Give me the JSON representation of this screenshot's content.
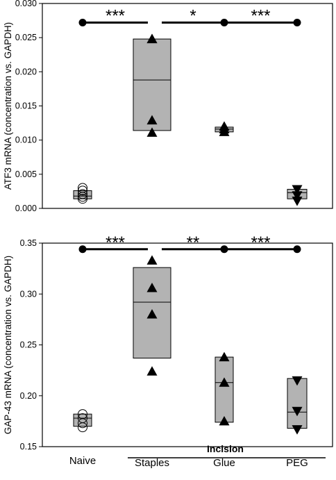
{
  "chart_data": [
    {
      "type": "box",
      "ylabel": "ATF3 mRNA (concentration vs. GAPDH)",
      "ylim": [
        0,
        0.03
      ],
      "yticks": [
        0,
        0.005,
        0.01,
        0.015,
        0.02,
        0.025,
        0.03
      ],
      "ytick_labels": [
        "0.000",
        "0.005",
        "0.010",
        "0.015",
        "0.020",
        "0.025",
        "0.030"
      ],
      "categories": [
        "Naive",
        "Staples",
        "Glue",
        "PEG"
      ],
      "boxes": [
        {
          "category": "Naive",
          "q1": 0.0014,
          "median": 0.0018,
          "q3": 0.0026
        },
        {
          "category": "Staples",
          "q1": 0.0114,
          "median": 0.0188,
          "q3": 0.0248
        },
        {
          "category": "Glue",
          "q1": 0.0112,
          "median": 0.0116,
          "q3": 0.0119
        },
        {
          "category": "PEG",
          "q1": 0.0014,
          "median": 0.0023,
          "q3": 0.0028
        }
      ],
      "points": [
        {
          "category": "Naive",
          "marker": "circle-open",
          "values": [
            0.0014,
            0.0017,
            0.0021,
            0.0026,
            0.003
          ]
        },
        {
          "category": "Staples",
          "marker": "triangle-up",
          "values": [
            0.0111,
            0.0129,
            0.0248,
            0.0248
          ]
        },
        {
          "category": "Glue",
          "marker": "triangle-up",
          "values": [
            0.0112,
            0.0116,
            0.012
          ]
        },
        {
          "category": "PEG",
          "marker": "triangle-down",
          "values": [
            0.0011,
            0.0019,
            0.0028
          ]
        }
      ],
      "significance_y": 0.0272,
      "significance": [
        {
          "from": "Naive",
          "to": "Staples",
          "label": "***"
        },
        {
          "from": "Staples",
          "to": "Glue",
          "label": "*"
        },
        {
          "from": "Glue",
          "to": "PEG",
          "label": "***"
        }
      ]
    },
    {
      "type": "box",
      "ylabel": "GAP-43 mRNA (concentration vs. GAPDH)",
      "ylim": [
        0.15,
        0.35
      ],
      "yticks": [
        0.15,
        0.2,
        0.25,
        0.3,
        0.35
      ],
      "ytick_labels": [
        "0.15",
        "0.20",
        "0.25",
        "0.30",
        "0.35"
      ],
      "categories": [
        "Naive",
        "Staples",
        "Glue",
        "PEG"
      ],
      "boxes": [
        {
          "category": "Naive",
          "q1": 0.17,
          "median": 0.178,
          "q3": 0.182
        },
        {
          "category": "Staples",
          "q1": 0.237,
          "median": 0.292,
          "q3": 0.326
        },
        {
          "category": "Glue",
          "q1": 0.174,
          "median": 0.213,
          "q3": 0.238
        },
        {
          "category": "PEG",
          "q1": 0.168,
          "median": 0.184,
          "q3": 0.217
        }
      ],
      "points": [
        {
          "category": "Naive",
          "marker": "circle-open",
          "values": [
            0.169,
            0.173,
            0.178,
            0.182
          ]
        },
        {
          "category": "Staples",
          "marker": "triangle-up",
          "values": [
            0.224,
            0.28,
            0.306,
            0.333
          ]
        },
        {
          "category": "Glue",
          "marker": "triangle-up",
          "values": [
            0.175,
            0.213,
            0.238
          ]
        },
        {
          "category": "PEG",
          "marker": "triangle-down",
          "values": [
            0.167,
            0.185,
            0.215
          ]
        }
      ],
      "significance_y": 0.344,
      "significance": [
        {
          "from": "Naive",
          "to": "Staples",
          "label": "***"
        },
        {
          "from": "Staples",
          "to": "Glue",
          "label": "**"
        },
        {
          "from": "Glue",
          "to": "PEG",
          "label": "***"
        }
      ]
    }
  ],
  "x_axis": {
    "labels": [
      "Naive",
      "Staples",
      "Glue",
      "PEG"
    ],
    "group_label": "Incision"
  }
}
